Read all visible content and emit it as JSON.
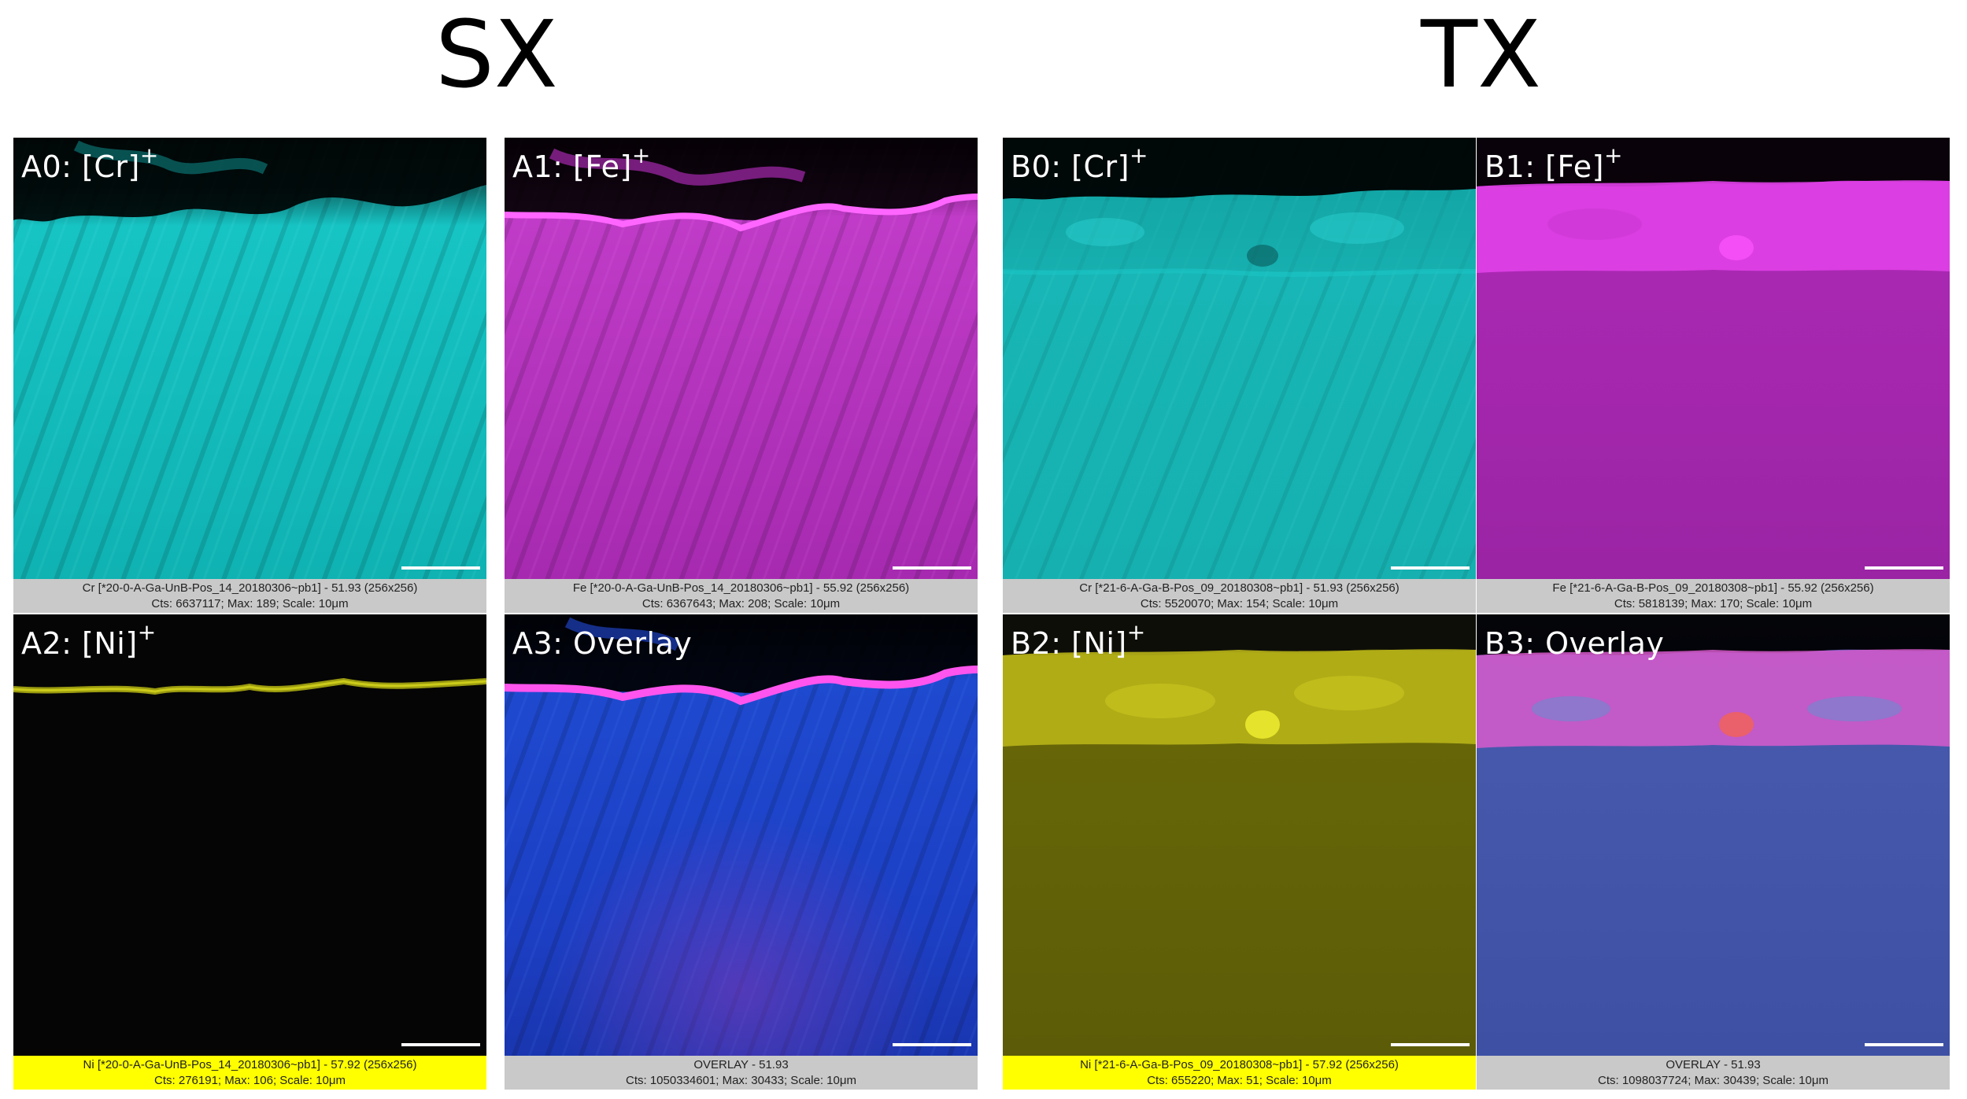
{
  "groups": [
    {
      "title": "SX",
      "panels": [
        {
          "label": "A0: [Cr]",
          "sup": "+",
          "caption1": "Cr [*20-0-A-Ga-UnB-Pos_14_20180306~pb1] - 51.93 (256x256)",
          "caption2": "Cts: 6637117; Max: 189; Scale: 10μm"
        },
        {
          "label": "A1: [Fe]",
          "sup": "+",
          "caption1": "Fe [*20-0-A-Ga-UnB-Pos_14_20180306~pb1] - 55.92 (256x256)",
          "caption2": "Cts: 6367643; Max: 208; Scale: 10μm"
        },
        {
          "label": "A2: [Ni]",
          "sup": "+",
          "caption1": "Ni [*20-0-A-Ga-UnB-Pos_14_20180306~pb1] - 57.92 (256x256)",
          "caption2": "Cts: 276191; Max: 106; Scale: 10μm"
        },
        {
          "label": "A3: Overlay",
          "sup": "",
          "caption1": "OVERLAY - 51.93",
          "caption2": "Cts: 1050334601; Max: 30433; Scale: 10μm"
        }
      ]
    },
    {
      "title": "TX",
      "panels": [
        {
          "label": "B0: [Cr]",
          "sup": "+",
          "caption1": "Cr [*21-6-A-Ga-B-Pos_09_20180308~pb1] - 51.93 (256x256)",
          "caption2": "Cts: 5520070; Max: 154; Scale: 10μm"
        },
        {
          "label": "B1: [Fe]",
          "sup": "+",
          "caption1": "Fe [*21-6-A-Ga-B-Pos_09_20180308~pb1] - 55.92 (256x256)",
          "caption2": "Cts: 5818139; Max: 170; Scale: 10μm"
        },
        {
          "label": "B2: [Ni]",
          "sup": "+",
          "caption1": "Ni [*21-6-A-Ga-B-Pos_09_20180308~pb1] - 57.92 (256x256)",
          "caption2": "Cts: 655220; Max: 51; Scale: 10μm"
        },
        {
          "label": "B3: Overlay",
          "sup": "",
          "caption1": "OVERLAY - 51.93",
          "caption2": "Cts: 1098037724; Max: 30439; Scale: 10μm"
        }
      ]
    }
  ],
  "colors": {
    "cyan": "#12c8c8",
    "magenta": "#c53ccc",
    "yellow": "#c8c400",
    "blue": "#1e48c8",
    "caption_gray": "#c9c9c9",
    "caption_yellow": "#ffff00"
  }
}
